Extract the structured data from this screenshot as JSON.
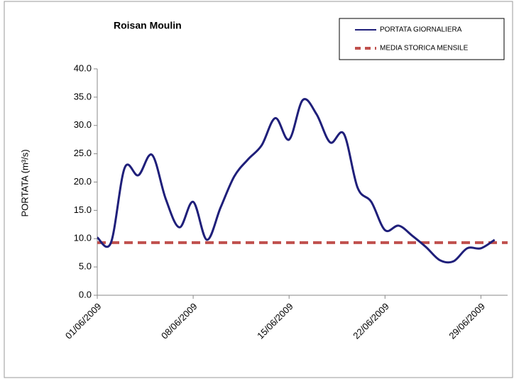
{
  "chart_data": {
    "type": "line",
    "title": "Roisan Moulin",
    "y_label": "PORTATA (m³/s)",
    "categories": [
      "01/06/2009",
      null,
      null,
      null,
      null,
      null,
      null,
      "08/06/2009",
      null,
      null,
      null,
      null,
      null,
      null,
      "15/06/2009",
      null,
      null,
      null,
      null,
      null,
      null,
      "22/06/2009",
      null,
      null,
      null,
      null,
      null,
      null,
      "29/06/2009",
      null
    ],
    "series": [
      {
        "name": "PORTATA GIORNALIERA",
        "color": "#1f1f7a",
        "values": [
          10.2,
          9.3,
          22.5,
          21.2,
          24.8,
          17,
          12,
          16.5,
          9.8,
          15.5,
          21,
          24,
          26.5,
          31.3,
          27.5,
          34.5,
          32,
          27,
          28.5,
          19,
          16.5,
          11.5,
          12.3,
          10.5,
          8.5,
          6.2,
          6,
          8.3,
          8.3,
          9.8
        ]
      }
    ],
    "reference": {
      "name": "MEDIA STORICA MENSILE",
      "color": "#c0504d",
      "value": 9.3
    },
    "ylim": [
      0,
      40
    ],
    "yticks": [
      {
        "value": 0,
        "label": "0.0"
      },
      {
        "value": 5,
        "label": "5.0"
      },
      {
        "value": 10,
        "label": "10.0"
      },
      {
        "value": 15,
        "label": "15.0"
      },
      {
        "value": 20,
        "label": "20.0"
      },
      {
        "value": 25,
        "label": "25.0"
      },
      {
        "value": 30,
        "label": "30.0"
      },
      {
        "value": 35,
        "label": "35.0"
      },
      {
        "value": 40,
        "label": "40.0"
      }
    ],
    "legend": "top-right"
  }
}
